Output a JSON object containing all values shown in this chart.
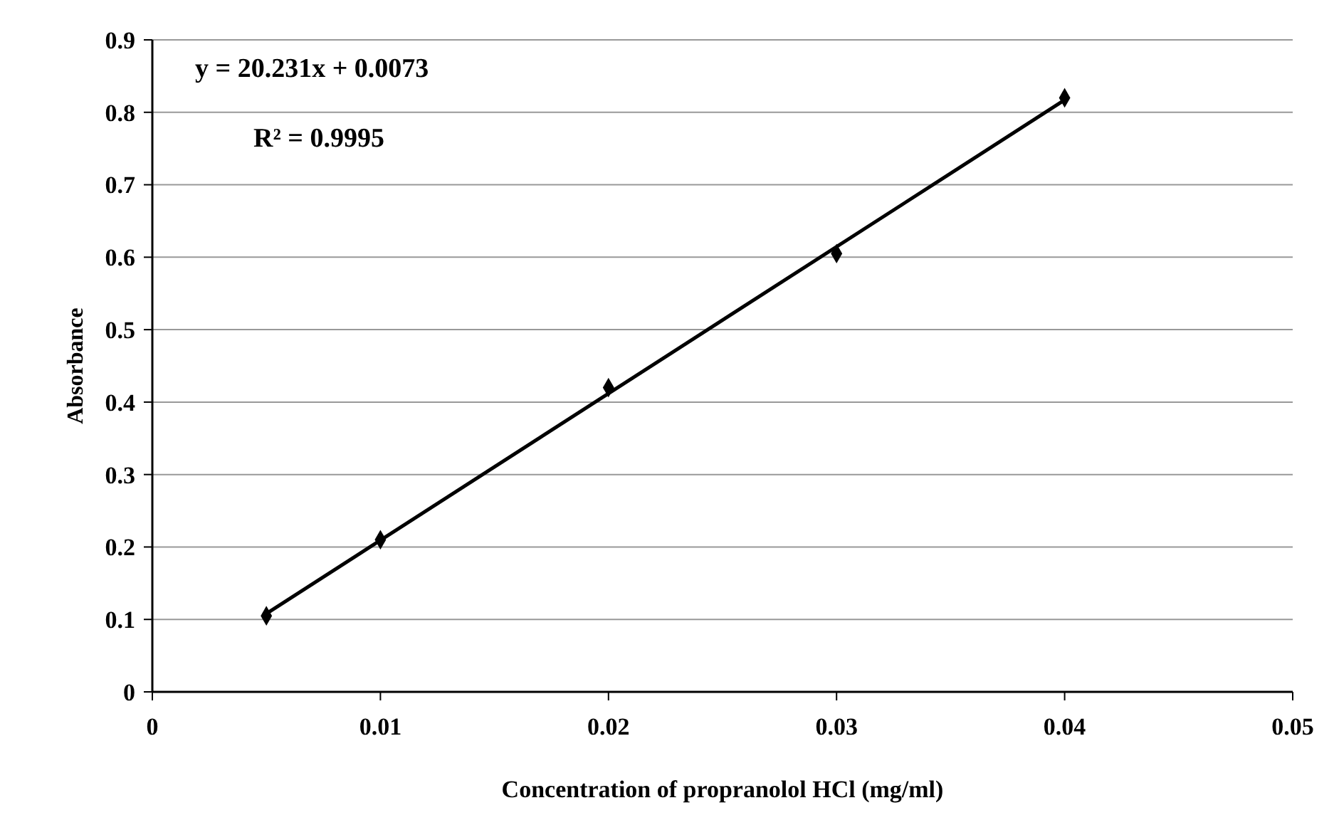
{
  "chart_data": {
    "type": "scatter",
    "xlabel": "Concentration of propranolol HCl  (mg/ml)",
    "ylabel": "Absorbance",
    "annotations": [
      "y = 20.231x + 0.0073",
      "R² = 0.9995"
    ],
    "series": [
      {
        "color": "#000000",
        "marker": "diamond",
        "x": [
          0.005,
          0.01,
          0.02,
          0.03,
          0.04
        ],
        "values": [
          0.105,
          0.21,
          0.42,
          0.605,
          0.82
        ]
      },
      {
        "type": "line",
        "color": "#000000",
        "marker": "none",
        "line_style": "solid",
        "x": [
          0.005,
          0.04
        ],
        "values": [
          0.108,
          0.817
        ]
      }
    ],
    "xlim": [
      0,
      0.05
    ],
    "xticks": [
      0,
      0.01,
      0.02,
      0.03,
      0.04,
      0.05
    ],
    "ylim": [
      0,
      0.9
    ],
    "yticks": [
      0,
      0.1,
      0.2,
      0.3,
      0.4,
      0.5,
      0.6,
      0.7,
      0.8,
      0.9
    ],
    "grid": "y"
  }
}
